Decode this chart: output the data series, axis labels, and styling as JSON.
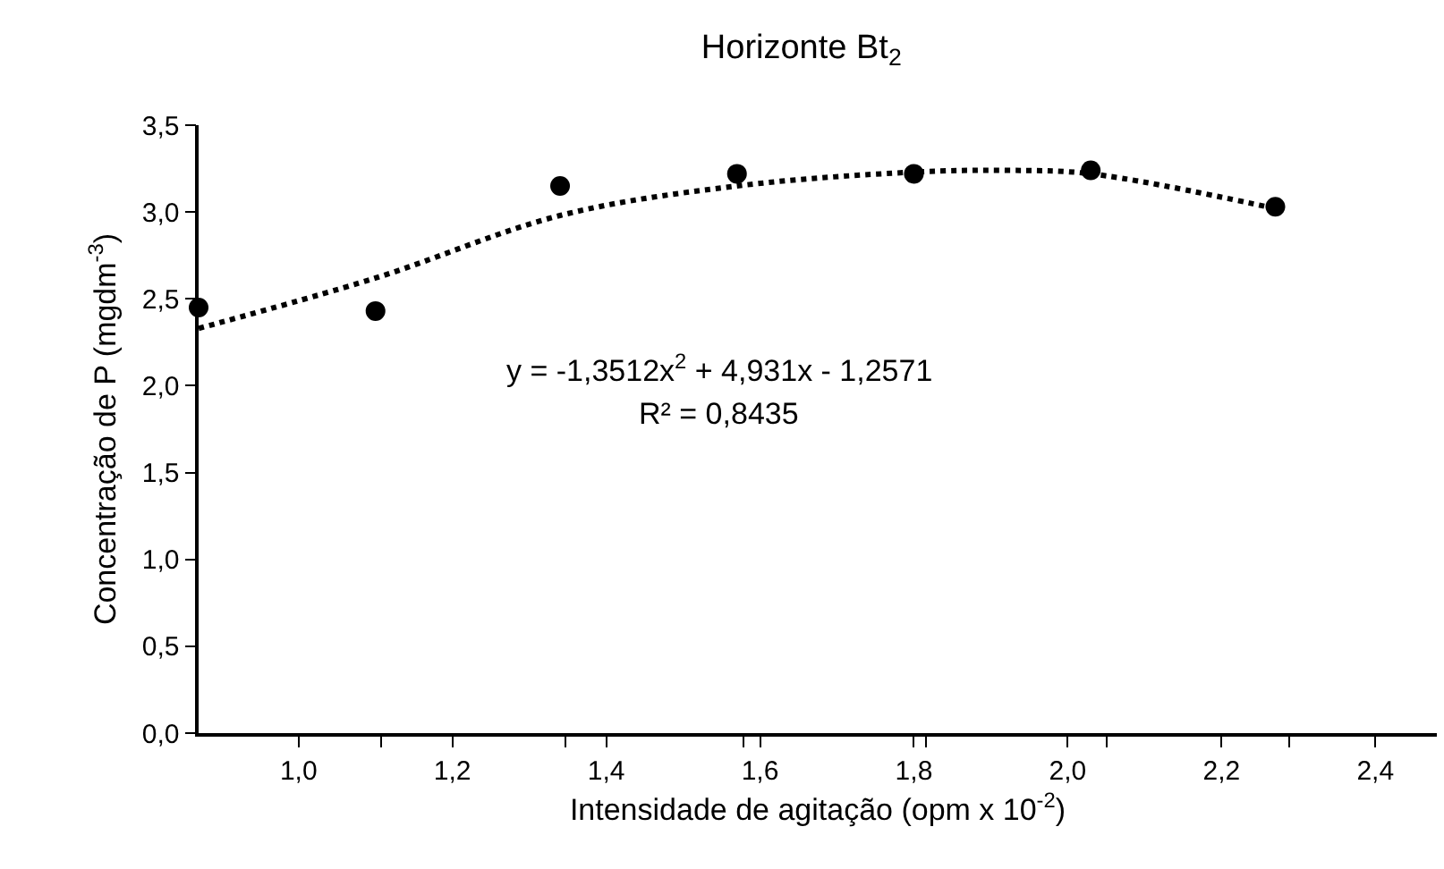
{
  "chart_data": {
    "type": "scatter",
    "title": "Horizonte Bt$_{2}$",
    "xlabel": "Intensidade de agitação (opm x 10$^{-2}$)",
    "ylabel": "Concentração de P (mgdm$^{-3}$)",
    "annotations": [
      "y = -1,3512x$^{2}$ + 4,931x - 1,2571",
      "R² = 0,8435"
    ],
    "series": [
      {
        "color": "#000000",
        "marker": "circle",
        "x": [
          0.87,
          1.1,
          1.34,
          1.57,
          1.8,
          2.03,
          2.27
        ],
        "values": [
          2.45,
          2.43,
          3.15,
          3.22,
          3.22,
          3.24,
          3.03
        ]
      },
      {
        "type": "line",
        "color": "#000000",
        "marker": "none",
        "x": [
          0.87,
          1.1,
          1.34,
          1.57,
          1.8,
          1.92,
          2.03,
          2.27
        ],
        "values": [
          2.33,
          2.62,
          2.98,
          3.15,
          3.23,
          3.24,
          3.22,
          3.02
        ]
      }
    ],
    "xlim": [
      0.87,
      2.48
    ],
    "xticks": [
      {
        "value": 1.0,
        "label": "1,0"
      },
      {
        "value": 1.2,
        "label": "1,2"
      },
      {
        "value": 1.4,
        "label": "1,4"
      },
      {
        "value": 1.6,
        "label": "1,6"
      },
      {
        "value": 1.8,
        "label": "1,8"
      },
      {
        "value": 2.0,
        "label": "2,0"
      },
      {
        "value": 2.2,
        "label": "2,2"
      },
      {
        "value": 2.4,
        "label": "2,4"
      },
      {
        "value": 1.107,
        "label": null
      },
      {
        "value": 1.347,
        "label": null
      },
      {
        "value": 1.579,
        "label": null
      },
      {
        "value": 1.816,
        "label": null
      },
      {
        "value": 2.051,
        "label": null
      },
      {
        "value": 2.288,
        "label": null
      }
    ],
    "ylim": [
      0,
      3.5
    ],
    "yticks": [
      {
        "value": 0,
        "label": "0,0"
      },
      {
        "value": 0.5,
        "label": "0,5"
      },
      {
        "value": 1.0,
        "label": "1,0"
      },
      {
        "value": 1.5,
        "label": "1,5"
      },
      {
        "value": 2.0,
        "label": "2,0"
      },
      {
        "value": 2.5,
        "label": "2,5"
      },
      {
        "value": 3.0,
        "label": "3,0"
      },
      {
        "value": 3.5,
        "label": "3,5"
      }
    ],
    "line_style": "dotted"
  }
}
